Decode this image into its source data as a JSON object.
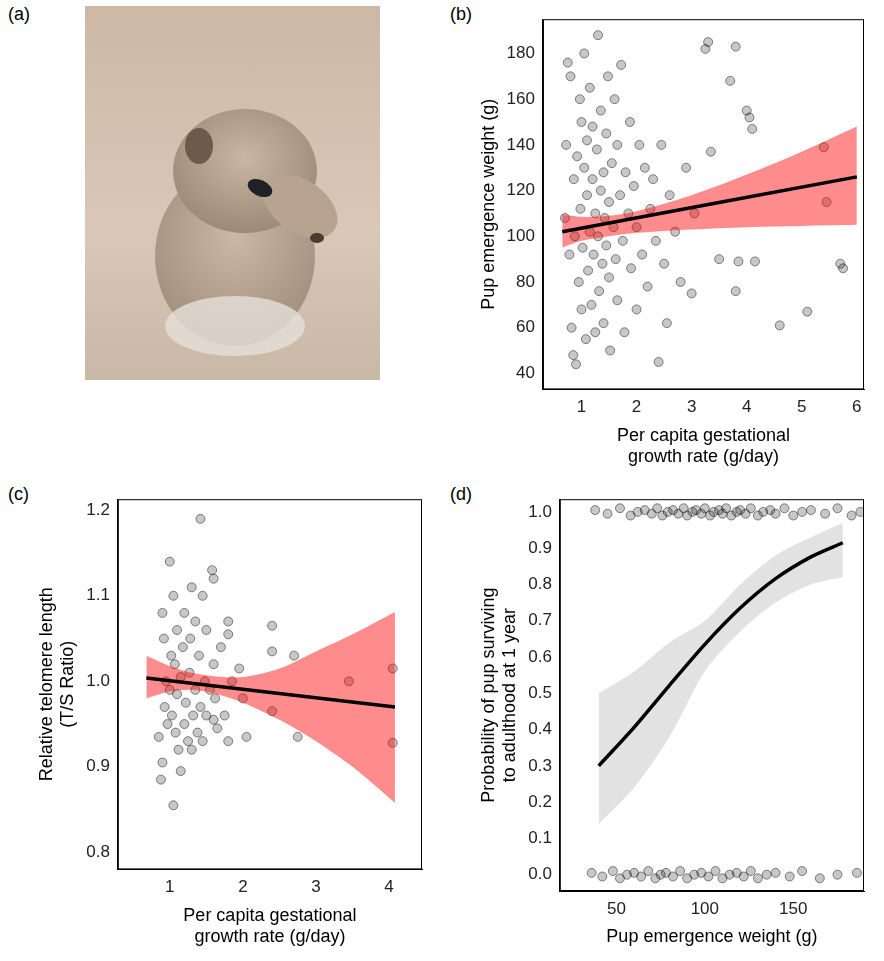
{
  "image": {
    "title": "(a)"
  },
  "chart_data": [
    {
      "type": "scatter",
      "title": "(b)",
      "x_label": [
        "Per capita gestational",
        "growth rate (g/day)"
      ],
      "y_label": "Pup emergence weight (g)",
      "xlim": [
        0.3,
        6.13
      ],
      "ylim": [
        33,
        195
      ],
      "xticks": [
        1,
        2,
        3,
        4,
        5,
        6
      ],
      "yticks": [
        40,
        60,
        80,
        100,
        120,
        140,
        160,
        180
      ],
      "grid": false,
      "series": [
        {
          "type": "scatter",
          "color": "#000000",
          "marker": "circle",
          "x": [
            0.7,
            0.72,
            0.75,
            0.78,
            0.8,
            0.82,
            0.85,
            0.86,
            0.88,
            0.9,
            0.92,
            0.95,
            0.97,
            0.98,
            1.0,
            1.0,
            1.02,
            1.05,
            1.05,
            1.08,
            1.1,
            1.1,
            1.12,
            1.15,
            1.15,
            1.18,
            1.2,
            1.2,
            1.22,
            1.25,
            1.25,
            1.28,
            1.3,
            1.3,
            1.32,
            1.35,
            1.35,
            1.38,
            1.4,
            1.4,
            1.42,
            1.45,
            1.45,
            1.48,
            1.5,
            1.5,
            1.52,
            1.55,
            1.58,
            1.6,
            1.62,
            1.65,
            1.65,
            1.7,
            1.72,
            1.75,
            1.78,
            1.8,
            1.85,
            1.88,
            1.9,
            1.95,
            2.0,
            2.0,
            2.05,
            2.1,
            2.15,
            2.2,
            2.25,
            2.3,
            2.35,
            2.4,
            2.45,
            2.5,
            2.55,
            2.6,
            2.7,
            2.8,
            2.9,
            3.0,
            3.05,
            3.25,
            3.3,
            3.35,
            3.5,
            3.7,
            3.8,
            3.8,
            3.85,
            4.0,
            4.05,
            4.1,
            4.15,
            4.6,
            5.1,
            5.4,
            5.45,
            5.7,
            5.75
          ],
          "values": [
            108,
            140,
            176,
            92,
            170,
            60,
            48,
            125,
            100,
            44,
            135,
            80,
            160,
            112,
            68,
            150,
            95,
            130,
            180,
            55,
            118,
            142,
            85,
            102,
            165,
            70,
            125,
            148,
            92,
            110,
            58,
            138,
            188,
            100,
            76,
            120,
            155,
            88,
            128,
            62,
            108,
            145,
            96,
            170,
            82,
            115,
            50,
            132,
            104,
            160,
            90,
            72,
            140,
            118,
            175,
            98,
            58,
            128,
            110,
            150,
            86,
            122,
            68,
            104,
            140,
            92,
            130,
            78,
            112,
            125,
            98,
            45,
            140,
            88,
            62,
            118,
            102,
            80,
            130,
            75,
            110,
            182,
            185,
            137,
            90,
            168,
            183,
            76,
            89,
            155,
            152,
            147,
            89,
            61,
            67,
            139,
            115,
            88,
            86
          ]
        },
        {
          "type": "band",
          "color": "#ff0000",
          "x": [
            0.65,
            1,
            1.5,
            2,
            3,
            4,
            5,
            6
          ],
          "lower": [
            95,
            98,
            100,
            101.5,
            103,
            104,
            104.5,
            105
          ],
          "upper": [
            109.5,
            108.5,
            109,
            111,
            118,
            127,
            137,
            148
          ]
        },
        {
          "type": "line",
          "color": "#000000",
          "line_style": "solid",
          "x": [
            0.65,
            6
          ],
          "values": [
            102,
            126
          ]
        }
      ]
    },
    {
      "type": "scatter",
      "title": "(c)",
      "x_label": [
        "Per capita gestational",
        "growth rate (g/day)"
      ],
      "y_label": [
        "Relative telomere length",
        "(T/S Ratio)"
      ],
      "xlim": [
        0.29,
        4.45
      ],
      "ylim": [
        0.78,
        1.213
      ],
      "xticks": [
        1,
        2,
        3,
        4
      ],
      "yticks": [
        0.8,
        0.9,
        {
          "value": 1.0,
          "label": "1.0"
        },
        1.1,
        1.2
      ],
      "grid": false,
      "series": [
        {
          "type": "scatter",
          "color": "#000000",
          "marker": "circle",
          "x": [
            0.85,
            0.88,
            0.9,
            0.9,
            0.92,
            0.93,
            0.95,
            0.97,
            1.0,
            1.0,
            1.02,
            1.03,
            1.05,
            1.05,
            1.07,
            1.08,
            1.1,
            1.1,
            1.12,
            1.15,
            1.15,
            1.18,
            1.2,
            1.2,
            1.22,
            1.25,
            1.27,
            1.28,
            1.3,
            1.3,
            1.32,
            1.35,
            1.35,
            1.38,
            1.4,
            1.42,
            1.42,
            1.45,
            1.45,
            1.48,
            1.5,
            1.5,
            1.55,
            1.58,
            1.6,
            1.6,
            1.6,
            1.62,
            1.65,
            1.7,
            1.75,
            1.8,
            1.8,
            1.8,
            1.85,
            1.95,
            2.0,
            2.05,
            2.4,
            2.4,
            2.4,
            2.7,
            2.75,
            3.45,
            4.05,
            4.05
          ],
          "values": [
            0.935,
            0.885,
            0.905,
            1.08,
            1.05,
            0.97,
            1.0,
            0.95,
            1.14,
            0.99,
            1.03,
            0.96,
            1.1,
            0.855,
            1.02,
            0.94,
            1.06,
            0.985,
            0.92,
            1.005,
            0.895,
            1.04,
            0.95,
            1.08,
            0.975,
            0.93,
            1.01,
            1.05,
            0.92,
            1.11,
            0.96,
            1.07,
            0.99,
            0.94,
            1.03,
            1.19,
            0.97,
            1.1,
            0.93,
            1.0,
            1.06,
            0.96,
            0.99,
            1.13,
            1.12,
            1.02,
            0.955,
            0.98,
            0.945,
            1.04,
            0.96,
            1.07,
            1.055,
            0.93,
            1.0,
            1.015,
            0.98,
            0.935,
            1.065,
            1.035,
            0.965,
            1.03,
            0.935,
            1.0,
            1.015,
            0.928
          ]
        },
        {
          "type": "band",
          "color": "#ff0000",
          "x": [
            0.68,
            1,
            1.3,
            1.6,
            2,
            2.5,
            3,
            3.5,
            4.08
          ],
          "lower": [
            0.98,
            0.988,
            0.99,
            0.986,
            0.975,
            0.955,
            0.93,
            0.9,
            0.858
          ],
          "upper": [
            1.03,
            1.018,
            1.01,
            1.006,
            1.005,
            1.015,
            1.035,
            1.055,
            1.081
          ]
        },
        {
          "type": "line",
          "color": "#000000",
          "line_style": "solid",
          "x": [
            0.68,
            4.08
          ],
          "values": [
            1.004,
            0.97
          ]
        }
      ]
    },
    {
      "type": "scatter",
      "title": "(d)",
      "x_label": "Pup emergence weight (g)",
      "y_label": [
        "Probability of pup surviving",
        "to adulthood at 1 year"
      ],
      "xlim": [
        18,
        190
      ],
      "ylim": [
        -0.045,
        1.035
      ],
      "xticks": [
        50,
        100,
        150
      ],
      "yticks": [
        {
          "value": 0,
          "label": "0.0"
        },
        0.1,
        0.2,
        0.3,
        0.4,
        0.5,
        0.6,
        0.7,
        0.8,
        0.9,
        {
          "value": 1,
          "label": "1.0"
        }
      ],
      "grid": false,
      "series": [
        {
          "type": "scatter",
          "color": "#000000",
          "marker": "circle",
          "x": [
            38,
            45,
            52,
            58,
            62,
            66,
            70,
            73,
            76,
            79,
            82,
            85,
            88,
            90,
            93,
            95,
            98,
            100,
            103,
            105,
            108,
            110,
            112,
            115,
            118,
            120,
            123,
            126,
            130,
            133,
            137,
            140,
            145,
            150,
            155,
            160,
            168,
            175,
            183,
            188,
            36,
            42,
            48,
            52,
            56,
            60,
            64,
            68,
            72,
            75,
            78,
            82,
            86,
            90,
            94,
            98,
            102,
            106,
            110,
            114,
            118,
            122,
            126,
            130,
            135,
            140,
            148,
            155,
            165,
            175,
            186
          ],
          "values": [
            1.005,
            0.995,
            1.01,
            0.99,
            1.0,
            1.005,
            0.995,
            1.01,
            0.99,
            1.0,
            1.005,
            0.995,
            1.01,
            0.99,
            1.0,
            1.005,
            0.995,
            1.01,
            0.99,
            1.0,
            1.005,
            0.995,
            1.01,
            0.99,
            1.0,
            1.005,
            0.995,
            1.01,
            0.99,
            1.0,
            1.005,
            0.995,
            1.01,
            0.99,
            1.0,
            1.005,
            0.995,
            1.01,
            0.99,
            1.0,
            0.005,
            -0.005,
            0.01,
            -0.01,
            0,
            0.005,
            -0.005,
            0.01,
            -0.01,
            0,
            0.005,
            -0.005,
            0.01,
            -0.01,
            0,
            0.005,
            -0.005,
            0.01,
            -0.01,
            0,
            0.005,
            -0.005,
            0.01,
            -0.01,
            0,
            0.005,
            -0.005,
            0.01,
            -0.01,
            0,
            0.005
          ]
        },
        {
          "type": "band",
          "color": "#bebebe",
          "x": [
            40,
            60,
            80,
            100,
            120,
            140,
            160,
            178
          ],
          "lower": [
            0.14,
            0.24,
            0.38,
            0.56,
            0.67,
            0.75,
            0.8,
            0.82
          ],
          "upper": [
            0.5,
            0.56,
            0.64,
            0.7,
            0.8,
            0.88,
            0.93,
            0.97
          ]
        },
        {
          "type": "line",
          "color": "#000000",
          "line_style": "solid",
          "x": [
            40,
            60,
            80,
            100,
            120,
            140,
            160,
            178
          ],
          "values": [
            0.3,
            0.406,
            0.522,
            0.635,
            0.735,
            0.816,
            0.876,
            0.915
          ]
        }
      ]
    }
  ]
}
